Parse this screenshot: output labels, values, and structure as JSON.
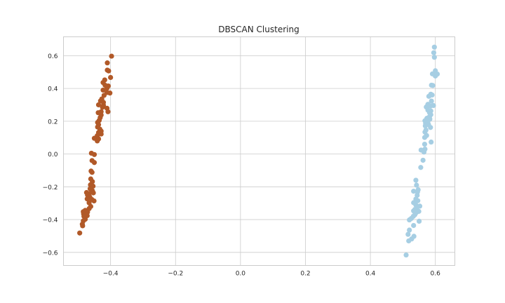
{
  "chart_data": {
    "type": "scatter",
    "title": "DBSCAN Clustering",
    "xlabel": "",
    "ylabel": "",
    "xlim": [
      -0.545,
      0.66
    ],
    "ylim": [
      -0.68,
      0.715
    ],
    "xticks": [
      -0.4,
      -0.2,
      0.0,
      0.2,
      0.4,
      0.6
    ],
    "yticks": [
      -0.6,
      -0.4,
      -0.2,
      0.0,
      0.2,
      0.4,
      0.6
    ],
    "xtick_labels": [
      "−0.4",
      "−0.2",
      "0.0",
      "0.2",
      "0.4",
      "0.6"
    ],
    "ytick_labels": [
      "−0.6",
      "−0.4",
      "−0.2",
      "0.0",
      "0.2",
      "0.4",
      "0.6"
    ],
    "grid": true,
    "series": [
      {
        "color": "#b15928",
        "points": [
          [
            -0.397,
            0.597
          ],
          [
            -0.41,
            0.556
          ],
          [
            -0.41,
            0.512
          ],
          [
            -0.406,
            0.507
          ],
          [
            -0.4,
            0.467
          ],
          [
            -0.418,
            0.452
          ],
          [
            -0.423,
            0.436
          ],
          [
            -0.417,
            0.42
          ],
          [
            -0.407,
            0.415
          ],
          [
            -0.411,
            0.401
          ],
          [
            -0.423,
            0.39
          ],
          [
            -0.411,
            0.375
          ],
          [
            -0.402,
            0.372
          ],
          [
            -0.42,
            0.358
          ],
          [
            -0.427,
            0.336
          ],
          [
            -0.431,
            0.324
          ],
          [
            -0.422,
            0.315
          ],
          [
            -0.437,
            0.3
          ],
          [
            -0.422,
            0.297
          ],
          [
            -0.425,
            0.285
          ],
          [
            -0.411,
            0.279
          ],
          [
            -0.408,
            0.258
          ],
          [
            -0.429,
            0.258
          ],
          [
            -0.438,
            0.252
          ],
          [
            -0.429,
            0.238
          ],
          [
            -0.432,
            0.222
          ],
          [
            -0.435,
            0.205
          ],
          [
            -0.44,
            0.193
          ],
          [
            -0.437,
            0.179
          ],
          [
            -0.44,
            0.165
          ],
          [
            -0.433,
            0.152
          ],
          [
            -0.429,
            0.14
          ],
          [
            -0.437,
            0.131
          ],
          [
            -0.429,
            0.122
          ],
          [
            -0.441,
            0.112
          ],
          [
            -0.45,
            0.096
          ],
          [
            -0.437,
            0.092
          ],
          [
            -0.441,
            0.08
          ],
          [
            -0.459,
            0.005
          ],
          [
            -0.45,
            -0.003
          ],
          [
            -0.457,
            -0.04
          ],
          [
            -0.45,
            -0.052
          ],
          [
            -0.46,
            -0.104
          ],
          [
            -0.457,
            -0.112
          ],
          [
            -0.461,
            -0.152
          ],
          [
            -0.456,
            -0.168
          ],
          [
            -0.462,
            -0.188
          ],
          [
            -0.454,
            -0.196
          ],
          [
            -0.463,
            -0.212
          ],
          [
            -0.456,
            -0.224
          ],
          [
            -0.474,
            -0.235
          ],
          [
            -0.466,
            -0.242
          ],
          [
            -0.453,
            -0.237
          ],
          [
            -0.471,
            -0.25
          ],
          [
            -0.464,
            -0.262
          ],
          [
            -0.472,
            -0.274
          ],
          [
            -0.458,
            -0.277
          ],
          [
            -0.451,
            -0.286
          ],
          [
            -0.466,
            -0.298
          ],
          [
            -0.461,
            -0.32
          ],
          [
            -0.466,
            -0.333
          ],
          [
            -0.478,
            -0.344
          ],
          [
            -0.484,
            -0.352
          ],
          [
            -0.471,
            -0.354
          ],
          [
            -0.483,
            -0.366
          ],
          [
            -0.472,
            -0.376
          ],
          [
            -0.482,
            -0.38
          ],
          [
            -0.478,
            -0.398
          ],
          [
            -0.484,
            -0.408
          ],
          [
            -0.487,
            -0.428
          ],
          [
            -0.486,
            -0.438
          ],
          [
            -0.495,
            -0.482
          ]
        ]
      },
      {
        "color": "#a6cee3",
        "points": [
          [
            0.597,
            0.652
          ],
          [
            0.595,
            0.618
          ],
          [
            0.597,
            0.59
          ],
          [
            0.6,
            0.508
          ],
          [
            0.591,
            0.489
          ],
          [
            0.606,
            0.488
          ],
          [
            0.6,
            0.476
          ],
          [
            0.588,
            0.42
          ],
          [
            0.592,
            0.418
          ],
          [
            0.586,
            0.365
          ],
          [
            0.59,
            0.36
          ],
          [
            0.58,
            0.352
          ],
          [
            0.588,
            0.323
          ],
          [
            0.577,
            0.303
          ],
          [
            0.594,
            0.296
          ],
          [
            0.585,
            0.293
          ],
          [
            0.572,
            0.287
          ],
          [
            0.577,
            0.268
          ],
          [
            0.586,
            0.263
          ],
          [
            0.582,
            0.253
          ],
          [
            0.586,
            0.24
          ],
          [
            0.582,
            0.228
          ],
          [
            0.574,
            0.218
          ],
          [
            0.583,
            0.213
          ],
          [
            0.568,
            0.203
          ],
          [
            0.577,
            0.198
          ],
          [
            0.57,
            0.186
          ],
          [
            0.579,
            0.18
          ],
          [
            0.569,
            0.172
          ],
          [
            0.585,
            0.162
          ],
          [
            0.571,
            0.146
          ],
          [
            0.568,
            0.134
          ],
          [
            0.573,
            0.113
          ],
          [
            0.567,
            0.101
          ],
          [
            0.587,
            0.073
          ],
          [
            0.567,
            0.06
          ],
          [
            0.568,
            0.03
          ],
          [
            0.556,
            0.024
          ],
          [
            0.565,
            0.012
          ],
          [
            0.562,
            -0.038
          ],
          [
            0.555,
            -0.082
          ],
          [
            0.54,
            -0.16
          ],
          [
            0.542,
            -0.19
          ],
          [
            0.547,
            -0.218
          ],
          [
            0.545,
            -0.232
          ],
          [
            0.533,
            -0.227
          ],
          [
            0.544,
            -0.252
          ],
          [
            0.54,
            -0.275
          ],
          [
            0.546,
            -0.285
          ],
          [
            0.533,
            -0.297
          ],
          [
            0.54,
            -0.311
          ],
          [
            0.552,
            -0.318
          ],
          [
            0.544,
            -0.325
          ],
          [
            0.537,
            -0.338
          ],
          [
            0.533,
            -0.347
          ],
          [
            0.549,
            -0.35
          ],
          [
            0.541,
            -0.358
          ],
          [
            0.537,
            -0.37
          ],
          [
            0.532,
            -0.38
          ],
          [
            0.526,
            -0.393
          ],
          [
            0.52,
            -0.402
          ],
          [
            0.55,
            -0.41
          ],
          [
            0.533,
            -0.436
          ],
          [
            0.52,
            -0.464
          ],
          [
            0.516,
            -0.49
          ],
          [
            0.534,
            -0.502
          ],
          [
            0.527,
            -0.518
          ],
          [
            0.518,
            -0.53
          ],
          [
            0.51,
            -0.616
          ]
        ]
      }
    ]
  }
}
